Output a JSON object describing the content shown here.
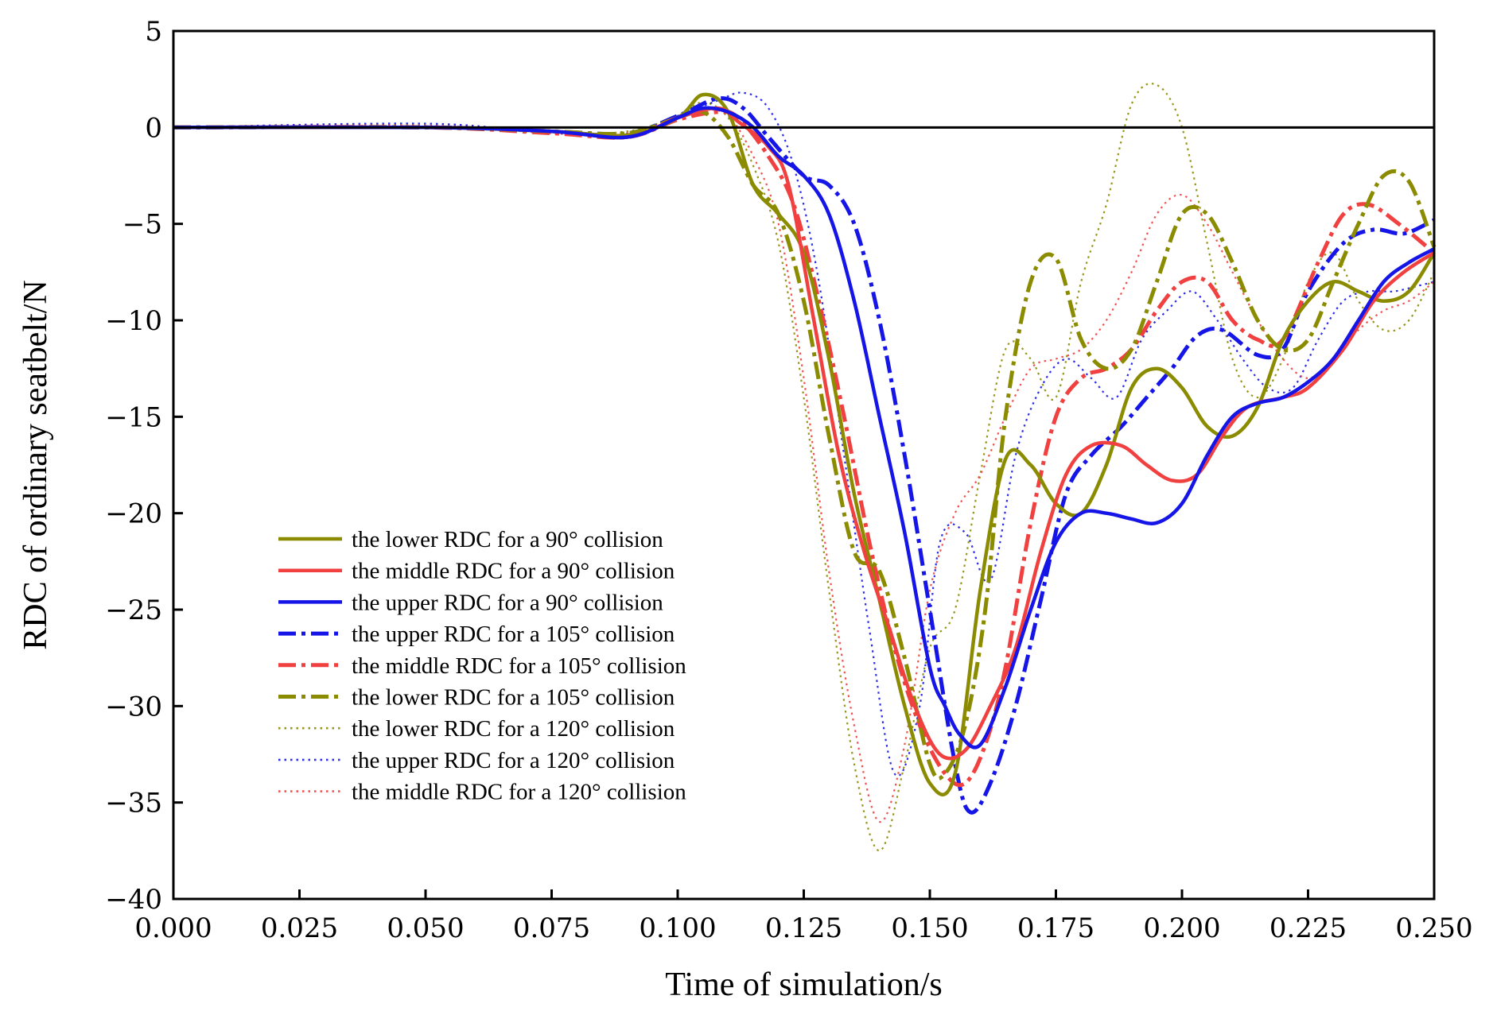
{
  "chart_data": {
    "type": "line",
    "title": "",
    "xlabel": "Time of simulation/s",
    "ylabel": "RDC of ordinary seatbelt/N",
    "xlim": [
      0,
      0.25
    ],
    "ylim": [
      -40,
      5
    ],
    "xticks": [
      0,
      0.025,
      0.05,
      0.075,
      0.1,
      0.125,
      0.15,
      0.175,
      0.2,
      0.225,
      0.25
    ],
    "yticks": [
      5,
      0,
      -5,
      -10,
      -15,
      -20,
      -25,
      -30,
      -35,
      -40
    ],
    "xtick_labels": [
      "0.000",
      "0.025",
      "0.050",
      "0.075",
      "0.100",
      "0.125",
      "0.150",
      "0.175",
      "0.200",
      "0.225",
      "0.250"
    ],
    "ytick_labels": [
      "5",
      "0",
      "−5",
      "−10",
      "−15",
      "−20",
      "−25",
      "−30",
      "−35",
      "−40"
    ],
    "legend_position": "lower-left",
    "reference_line": 0,
    "series": [
      {
        "name": "the lower RDC for a 90° collision",
        "color": "#8B8B00",
        "style": "solid",
        "x": [
          0,
          0.05,
          0.075,
          0.09,
          0.1,
          0.105,
          0.11,
          0.115,
          0.12,
          0.125,
          0.13,
          0.135,
          0.14,
          0.145,
          0.15,
          0.155,
          0.16,
          0.165,
          0.17,
          0.175,
          0.18,
          0.185,
          0.19,
          0.195,
          0.2,
          0.205,
          0.21,
          0.215,
          0.22,
          0.225,
          0.23,
          0.235,
          0.24,
          0.245,
          0.25
        ],
        "values": [
          0,
          0,
          -0.2,
          -0.4,
          0.5,
          1.7,
          0.8,
          -3,
          -4.5,
          -6.5,
          -12,
          -19,
          -24.5,
          -30,
          -34,
          -33.5,
          -24,
          -17.2,
          -17.5,
          -19.5,
          -20,
          -17.5,
          -13.5,
          -12.5,
          -13.5,
          -15.5,
          -16,
          -14.5,
          -11,
          -9,
          -8,
          -8.5,
          -9,
          -8.5,
          -6.5
        ]
      },
      {
        "name": "the middle RDC for a 90° collision",
        "color": "#F04040",
        "style": "solid",
        "x": [
          0,
          0.05,
          0.075,
          0.09,
          0.1,
          0.108,
          0.112,
          0.118,
          0.122,
          0.127,
          0.132,
          0.137,
          0.142,
          0.147,
          0.152,
          0.157,
          0.162,
          0.167,
          0.172,
          0.177,
          0.182,
          0.188,
          0.193,
          0.198,
          0.203,
          0.208,
          0.213,
          0.22,
          0.225,
          0.232,
          0.238,
          0.244,
          0.25
        ],
        "values": [
          0,
          0,
          -0.2,
          -0.5,
          0.5,
          1.0,
          0.3,
          -1,
          -3,
          -10,
          -17,
          -22,
          -26,
          -30,
          -32.5,
          -32.3,
          -30,
          -27,
          -22,
          -18,
          -16.5,
          -16.5,
          -17.5,
          -18.3,
          -18,
          -16,
          -14.5,
          -14,
          -13.5,
          -11.5,
          -9,
          -7.5,
          -6.5
        ]
      },
      {
        "name": "the upper RDC for a 90° collision",
        "color": "#1515E8",
        "style": "solid",
        "x": [
          0,
          0.05,
          0.075,
          0.09,
          0.1,
          0.105,
          0.11,
          0.115,
          0.12,
          0.125,
          0.13,
          0.135,
          0.14,
          0.145,
          0.15,
          0.153,
          0.156,
          0.16,
          0.165,
          0.17,
          0.175,
          0.18,
          0.185,
          0.19,
          0.195,
          0.2,
          0.205,
          0.21,
          0.215,
          0.22,
          0.225,
          0.23,
          0.235,
          0.24,
          0.245,
          0.25
        ],
        "values": [
          0,
          0,
          -0.2,
          -0.5,
          0.5,
          1.0,
          0.8,
          0,
          -1.5,
          -2.5,
          -4.5,
          -9,
          -15,
          -21,
          -28,
          -30,
          -31.5,
          -32,
          -29,
          -25,
          -21.5,
          -20,
          -20,
          -20.3,
          -20.5,
          -19.5,
          -17,
          -15,
          -14.3,
          -14,
          -13.2,
          -12,
          -10,
          -8,
          -7,
          -6.3
        ]
      },
      {
        "name": "the upper RDC for a 105° collision",
        "color": "#1515E8",
        "style": "dashdot",
        "x": [
          0,
          0.05,
          0.075,
          0.09,
          0.1,
          0.108,
          0.113,
          0.118,
          0.125,
          0.13,
          0.135,
          0.14,
          0.145,
          0.15,
          0.155,
          0.158,
          0.162,
          0.167,
          0.172,
          0.177,
          0.182,
          0.188,
          0.193,
          0.198,
          0.203,
          0.208,
          0.215,
          0.22,
          0.225,
          0.232,
          0.238,
          0.244,
          0.25
        ],
        "values": [
          0,
          0,
          -0.2,
          -0.3,
          0.6,
          1.5,
          1.0,
          -0.5,
          -2.5,
          -3,
          -5,
          -10,
          -17,
          -25,
          -33,
          -35.5,
          -34,
          -30,
          -24.5,
          -19,
          -17,
          -15.5,
          -14,
          -12.5,
          -10.8,
          -10.5,
          -11.8,
          -11.5,
          -8.5,
          -6,
          -5.3,
          -5.5,
          -4.8
        ]
      },
      {
        "name": "the middle RDC for a 105° collision",
        "color": "#F04040",
        "style": "dashdot",
        "x": [
          0,
          0.05,
          0.075,
          0.09,
          0.1,
          0.108,
          0.112,
          0.118,
          0.123,
          0.128,
          0.133,
          0.138,
          0.143,
          0.148,
          0.153,
          0.157,
          0.161,
          0.165,
          0.17,
          0.175,
          0.18,
          0.185,
          0.19,
          0.195,
          0.2,
          0.205,
          0.21,
          0.215,
          0.22,
          0.227,
          0.232,
          0.237,
          0.243,
          0.25
        ],
        "values": [
          0,
          0,
          -0.3,
          -0.5,
          0.4,
          0.8,
          0.5,
          -1.5,
          -4,
          -9,
          -15,
          -21.5,
          -27,
          -31,
          -33.5,
          -34,
          -32,
          -28,
          -20.5,
          -15,
          -13,
          -12.5,
          -11.5,
          -9.5,
          -8,
          -8,
          -10,
          -11,
          -11,
          -7,
          -4.5,
          -4,
          -5,
          -6.5
        ]
      },
      {
        "name": "the lower RDC for a 105° collision",
        "color": "#8B8B00",
        "style": "dashdot",
        "x": [
          0,
          0.05,
          0.075,
          0.09,
          0.1,
          0.105,
          0.11,
          0.115,
          0.12,
          0.125,
          0.13,
          0.135,
          0.14,
          0.145,
          0.15,
          0.153,
          0.157,
          0.161,
          0.165,
          0.17,
          0.175,
          0.18,
          0.185,
          0.19,
          0.195,
          0.2,
          0.205,
          0.21,
          0.215,
          0.22,
          0.225,
          0.23,
          0.235,
          0.24,
          0.245,
          0.25
        ],
        "values": [
          0,
          0,
          -0.2,
          -0.3,
          0.5,
          0.8,
          -0.5,
          -3,
          -4.5,
          -9,
          -16,
          -22,
          -23,
          -27.5,
          -33,
          -33.5,
          -31,
          -25,
          -15,
          -8,
          -6.8,
          -11,
          -12.5,
          -11.5,
          -8,
          -4.5,
          -4.5,
          -7,
          -10,
          -11.5,
          -11,
          -8,
          -5,
          -2.5,
          -2.8,
          -6.2
        ]
      },
      {
        "name": "the lower RDC for a 120° collision",
        "color": "#8B8B00",
        "style": "dotted",
        "x": [
          0,
          0.05,
          0.075,
          0.09,
          0.1,
          0.105,
          0.11,
          0.115,
          0.12,
          0.125,
          0.13,
          0.135,
          0.14,
          0.145,
          0.15,
          0.155,
          0.16,
          0.165,
          0.17,
          0.175,
          0.18,
          0.185,
          0.19,
          0.195,
          0.2,
          0.205,
          0.21,
          0.215,
          0.22,
          0.225,
          0.23,
          0.235,
          0.24,
          0.245,
          0.25
        ],
        "values": [
          0,
          0.1,
          -0.3,
          -0.2,
          0.6,
          1.3,
          0.5,
          -2,
          -6,
          -14,
          -24,
          -33,
          -37.5,
          -33,
          -27,
          -25,
          -18,
          -11.5,
          -12,
          -14,
          -8,
          -4,
          1.2,
          2.2,
          0,
          -6,
          -12,
          -14,
          -12,
          -8,
          -6.5,
          -9,
          -10.5,
          -10,
          -7.5
        ]
      },
      {
        "name": "the upper RDC for a 120° collision",
        "color": "#1515E8",
        "style": "dotted",
        "x": [
          0,
          0.05,
          0.075,
          0.09,
          0.1,
          0.108,
          0.113,
          0.118,
          0.123,
          0.128,
          0.133,
          0.138,
          0.143,
          0.148,
          0.152,
          0.157,
          0.162,
          0.167,
          0.172,
          0.177,
          0.182,
          0.187,
          0.192,
          0.197,
          0.202,
          0.207,
          0.212,
          0.217,
          0.222,
          0.227,
          0.232,
          0.237,
          0.242,
          0.247,
          0.25
        ],
        "values": [
          0,
          0.2,
          -0.3,
          -0.3,
          0.6,
          1.4,
          1.8,
          1.0,
          -2,
          -8,
          -17,
          -26,
          -33.5,
          -30,
          -21.5,
          -21,
          -23.5,
          -17,
          -13.5,
          -12,
          -13,
          -14,
          -11,
          -9.5,
          -8.5,
          -10,
          -12,
          -13.5,
          -13.5,
          -11,
          -9,
          -8.5,
          -8.5,
          -8.2,
          -8
        ]
      },
      {
        "name": "the middle RDC for a 120° collision",
        "color": "#F04040",
        "style": "dotted",
        "x": [
          0,
          0.05,
          0.075,
          0.09,
          0.1,
          0.105,
          0.11,
          0.115,
          0.12,
          0.125,
          0.13,
          0.135,
          0.14,
          0.145,
          0.15,
          0.155,
          0.16,
          0.165,
          0.17,
          0.175,
          0.18,
          0.185,
          0.19,
          0.195,
          0.2,
          0.205,
          0.21,
          0.215,
          0.22,
          0.225,
          0.23,
          0.235,
          0.24,
          0.245,
          0.25
        ],
        "values": [
          0,
          0.1,
          -0.3,
          -0.3,
          0.5,
          0.9,
          0.6,
          -1.5,
          -5,
          -13,
          -23,
          -31,
          -36,
          -32,
          -24,
          -20,
          -18,
          -15,
          -12.5,
          -12,
          -11.5,
          -10,
          -7.5,
          -4.5,
          -3.5,
          -5,
          -7.5,
          -10,
          -12,
          -13,
          -12,
          -10.5,
          -9.5,
          -9,
          -8
        ]
      }
    ]
  }
}
